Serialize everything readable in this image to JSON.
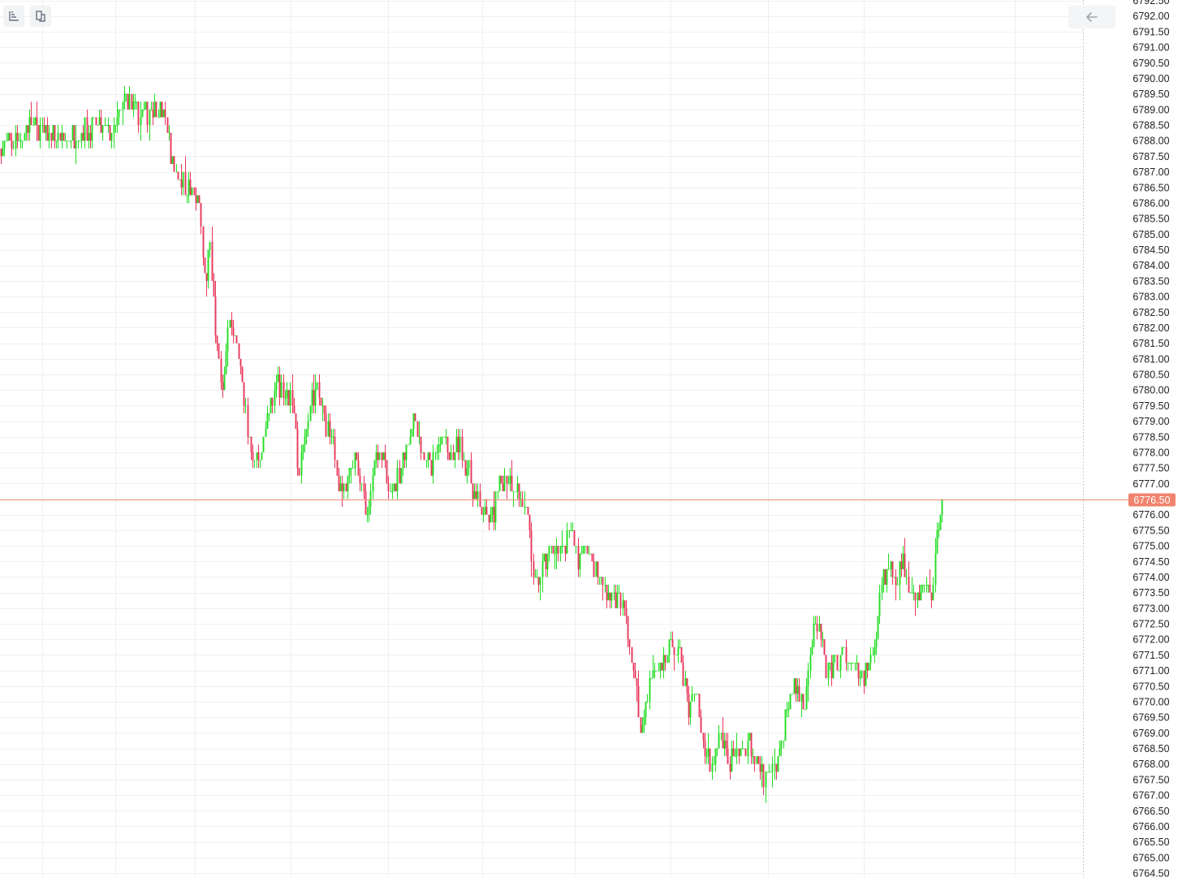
{
  "toolbar": {
    "left_buttons": [
      {
        "icon": "axis-settings-icon"
      },
      {
        "icon": "layout-icon"
      }
    ],
    "right_button": {
      "icon": "arrow-left-icon"
    }
  },
  "colors": {
    "up": "#22dd22",
    "down": "#e8375a",
    "grid": "#eef0f2",
    "price_line": "#f08a75",
    "price_badge": "#f0836e",
    "axis_text": "#222222"
  },
  "chart_data": {
    "type": "candlestick",
    "ylim": [
      6764.5,
      6792.5
    ],
    "tick_step": 0.5,
    "y_tick_labels": [
      "6792.50",
      "6792.00",
      "6791.50",
      "6791.00",
      "6790.50",
      "6790.00",
      "6789.50",
      "6789.00",
      "6788.50",
      "6788.00",
      "6787.50",
      "6787.00",
      "6786.50",
      "6786.00",
      "6785.50",
      "6785.00",
      "6784.50",
      "6784.00",
      "6783.50",
      "6783.00",
      "6782.50",
      "6782.00",
      "6781.50",
      "6781.00",
      "6780.50",
      "6780.00",
      "6779.50",
      "6779.00",
      "6778.50",
      "6778.00",
      "6777.50",
      "6777.00",
      "6776.50",
      "6776.00",
      "6775.50",
      "6775.00",
      "6774.50",
      "6774.00",
      "6773.50",
      "6773.00",
      "6772.50",
      "6772.00",
      "6771.50",
      "6771.00",
      "6770.50",
      "6770.00",
      "6769.50",
      "6769.00",
      "6768.50",
      "6768.00",
      "6767.50",
      "6767.00",
      "6766.50",
      "6766.00",
      "6765.50",
      "6765.00",
      "6764.50"
    ],
    "current_price": "6776.50",
    "close_anchors": [
      [
        0,
        6787.75
      ],
      [
        20,
        6788.0
      ],
      [
        35,
        6788.5
      ],
      [
        55,
        6788.25
      ],
      [
        75,
        6788.0
      ],
      [
        95,
        6788.25
      ],
      [
        120,
        6788.5
      ],
      [
        140,
        6788.25
      ],
      [
        155,
        6789.5
      ],
      [
        170,
        6788.75
      ],
      [
        185,
        6789.0
      ],
      [
        198,
        6789.0
      ],
      [
        205,
        6788.5
      ],
      [
        212,
        6787.25
      ],
      [
        225,
        6786.75
      ],
      [
        245,
        6786.0
      ],
      [
        252,
        6783.5
      ],
      [
        258,
        6784.5
      ],
      [
        265,
        6782.0
      ],
      [
        272,
        6780.0
      ],
      [
        282,
        6782.0
      ],
      [
        290,
        6781.5
      ],
      [
        298,
        6780.5
      ],
      [
        305,
        6778.5
      ],
      [
        312,
        6778.0
      ],
      [
        320,
        6777.5
      ],
      [
        330,
        6779.5
      ],
      [
        340,
        6780.25
      ],
      [
        350,
        6780.0
      ],
      [
        360,
        6779.5
      ],
      [
        368,
        6777.25
      ],
      [
        375,
        6778.5
      ],
      [
        385,
        6780.0
      ],
      [
        392,
        6779.75
      ],
      [
        400,
        6779.0
      ],
      [
        408,
        6778.5
      ],
      [
        415,
        6777.25
      ],
      [
        425,
        6776.5
      ],
      [
        435,
        6778.0
      ],
      [
        445,
        6776.75
      ],
      [
        452,
        6776.0
      ],
      [
        458,
        6777.5
      ],
      [
        470,
        6777.75
      ],
      [
        485,
        6776.75
      ],
      [
        500,
        6778.25
      ],
      [
        510,
        6779.25
      ],
      [
        520,
        6778.0
      ],
      [
        530,
        6777.5
      ],
      [
        545,
        6778.5
      ],
      [
        555,
        6777.75
      ],
      [
        565,
        6778.25
      ],
      [
        575,
        6777.5
      ],
      [
        585,
        6776.5
      ],
      [
        595,
        6776.0
      ],
      [
        605,
        6775.75
      ],
      [
        615,
        6777.0
      ],
      [
        625,
        6777.25
      ],
      [
        635,
        6777.0
      ],
      [
        645,
        6776.25
      ],
      [
        652,
        6775.25
      ],
      [
        660,
        6773.5
      ],
      [
        670,
        6774.5
      ],
      [
        680,
        6775.0
      ],
      [
        692,
        6774.75
      ],
      [
        705,
        6775.5
      ],
      [
        712,
        6774.5
      ],
      [
        720,
        6775.25
      ],
      [
        730,
        6774.25
      ],
      [
        740,
        6773.75
      ],
      [
        750,
        6773.5
      ],
      [
        760,
        6773.25
      ],
      [
        770,
        6773.0
      ],
      [
        780,
        6771.0
      ],
      [
        790,
        6769.0
      ],
      [
        800,
        6770.75
      ],
      [
        815,
        6771.25
      ],
      [
        825,
        6771.75
      ],
      [
        838,
        6771.5
      ],
      [
        848,
        6769.75
      ],
      [
        858,
        6770.5
      ],
      [
        865,
        6768.75
      ],
      [
        875,
        6768.0
      ],
      [
        885,
        6769.0
      ],
      [
        895,
        6768.25
      ],
      [
        905,
        6768.0
      ],
      [
        915,
        6768.5
      ],
      [
        922,
        6768.75
      ],
      [
        930,
        6768.0
      ],
      [
        942,
        6767.5
      ],
      [
        952,
        6767.75
      ],
      [
        960,
        6768.25
      ],
      [
        968,
        6769.75
      ],
      [
        978,
        6770.5
      ],
      [
        990,
        6770.0
      ],
      [
        1000,
        6772.0
      ],
      [
        1010,
        6772.25
      ],
      [
        1018,
        6770.75
      ],
      [
        1030,
        6771.25
      ],
      [
        1040,
        6771.5
      ],
      [
        1050,
        6771.0
      ],
      [
        1060,
        6770.75
      ],
      [
        1070,
        6771.0
      ],
      [
        1078,
        6772.0
      ],
      [
        1085,
        6774.0
      ],
      [
        1095,
        6774.25
      ],
      [
        1105,
        6774.0
      ],
      [
        1112,
        6774.5
      ],
      [
        1120,
        6773.75
      ],
      [
        1130,
        6773.5
      ],
      [
        1140,
        6773.75
      ],
      [
        1148,
        6773.5
      ],
      [
        1153,
        6775.0
      ],
      [
        1158,
        6776.25
      ],
      [
        1162,
        6776.5
      ]
    ]
  }
}
